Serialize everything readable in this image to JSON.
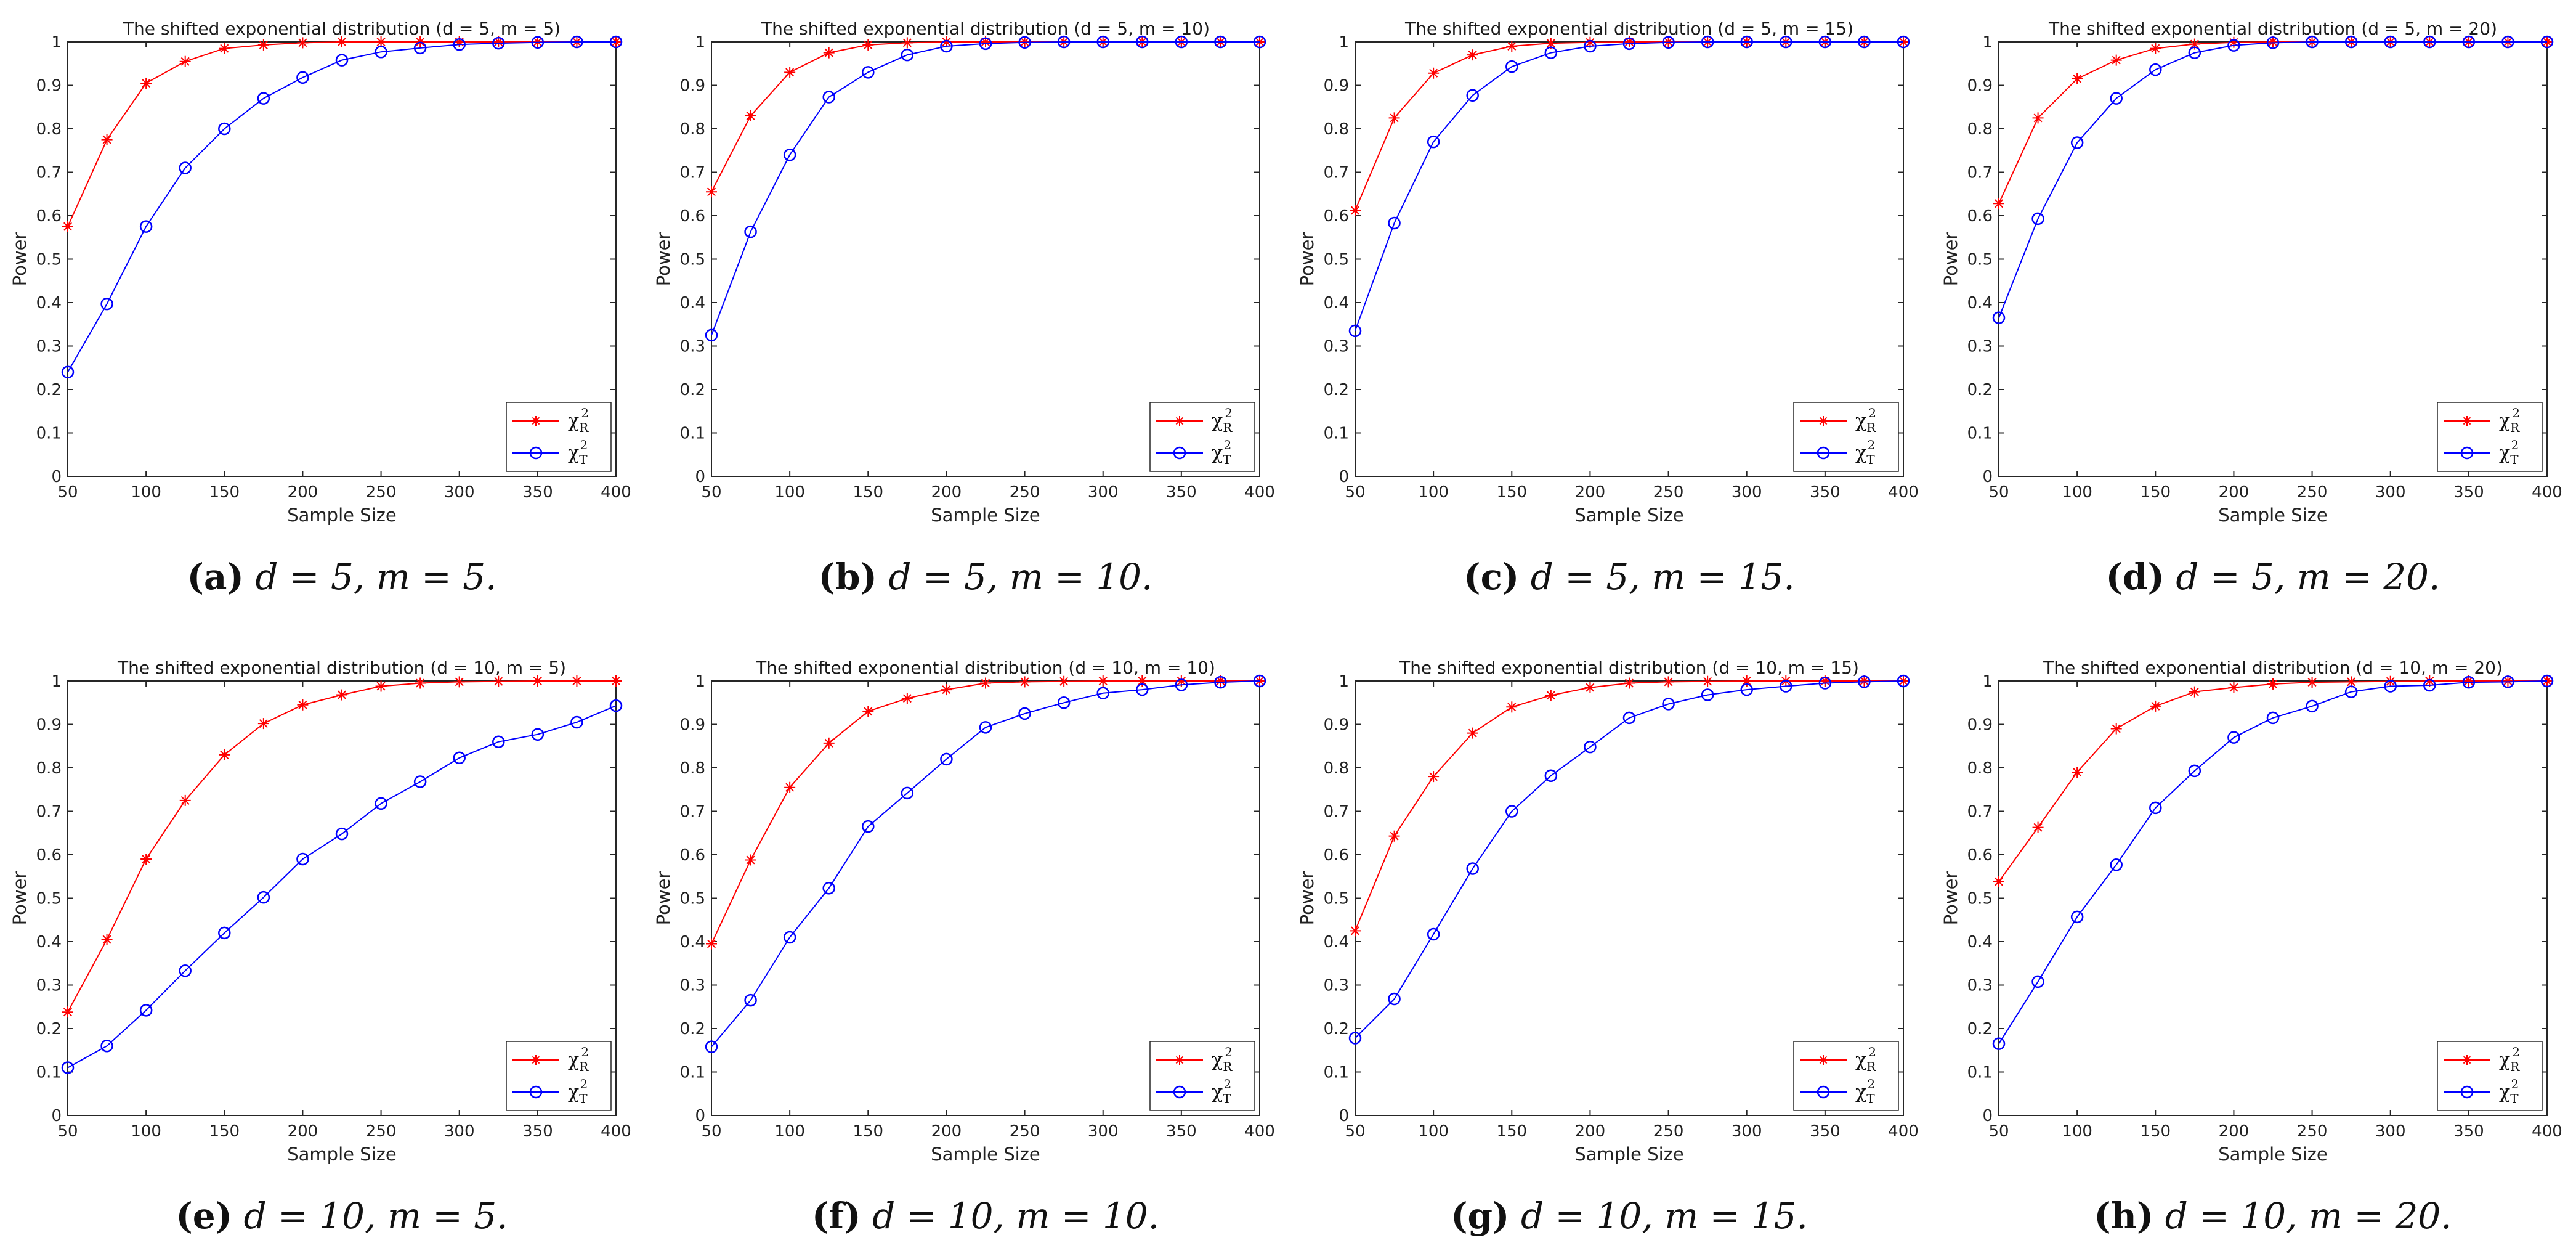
{
  "colors": {
    "chi2_R": "#ff0000",
    "chi2_T": "#0000ff",
    "axis": "#262626"
  },
  "icons": {
    "chi2_R_marker": "asterisk-marker",
    "chi2_T_marker": "circle-marker"
  },
  "chart_data": [
    {
      "type": "line",
      "title": "The shifted exponential distribution (d = 5, m = 5)",
      "caption_letter": "(a)",
      "caption_text": "d = 5, m = 5.",
      "xlabel": "Sample Size",
      "ylabel": "Power",
      "xlim": [
        50,
        400
      ],
      "ylim": [
        0,
        1
      ],
      "xticks": [
        "50",
        "100",
        "150",
        "200",
        "250",
        "300",
        "350",
        "400"
      ],
      "yticks": [
        "0",
        "0.1",
        "0.2",
        "0.3",
        "0.4",
        "0.5",
        "0.6",
        "0.7",
        "0.8",
        "0.9",
        "1"
      ],
      "x": [
        50,
        75,
        100,
        125,
        150,
        175,
        200,
        225,
        250,
        275,
        300,
        325,
        350,
        375,
        400
      ],
      "series": [
        {
          "name": "χR2",
          "label_base": "χ",
          "label_sub": "R",
          "label_sup": "2",
          "marker": "asterisk",
          "values": [
            0.575,
            0.775,
            0.905,
            0.955,
            0.985,
            0.993,
            0.998,
            1,
            1,
            1,
            1,
            1,
            1,
            1,
            1
          ]
        },
        {
          "name": "χT2",
          "label_base": "χ",
          "label_sub": "T",
          "label_sup": "2",
          "marker": "circle",
          "values": [
            0.24,
            0.397,
            0.575,
            0.71,
            0.8,
            0.87,
            0.918,
            0.958,
            0.977,
            0.986,
            0.994,
            0.997,
            0.999,
            1,
            1
          ]
        }
      ],
      "legend": "bottom-right"
    },
    {
      "type": "line",
      "title": "The shifted exponential distribution (d = 5, m = 10)",
      "caption_letter": "(b)",
      "caption_text": "d = 5, m = 10.",
      "xlabel": "Sample Size",
      "ylabel": "Power",
      "xlim": [
        50,
        400
      ],
      "ylim": [
        0,
        1
      ],
      "xticks": [
        "50",
        "100",
        "150",
        "200",
        "250",
        "300",
        "350",
        "400"
      ],
      "yticks": [
        "0",
        "0.1",
        "0.2",
        "0.3",
        "0.4",
        "0.5",
        "0.6",
        "0.7",
        "0.8",
        "0.9",
        "1"
      ],
      "x": [
        50,
        75,
        100,
        125,
        150,
        175,
        200,
        225,
        250,
        275,
        300,
        325,
        350,
        375,
        400
      ],
      "series": [
        {
          "name": "χR2",
          "label_base": "χ",
          "label_sub": "R",
          "label_sup": "2",
          "marker": "asterisk",
          "values": [
            0.655,
            0.83,
            0.93,
            0.975,
            0.993,
            0.998,
            1,
            1,
            1,
            1,
            1,
            1,
            1,
            1,
            1
          ]
        },
        {
          "name": "χT2",
          "label_base": "χ",
          "label_sub": "T",
          "label_sup": "2",
          "marker": "circle",
          "values": [
            0.325,
            0.563,
            0.74,
            0.873,
            0.93,
            0.97,
            0.99,
            0.996,
            0.999,
            1,
            1,
            1,
            1,
            1,
            1
          ]
        }
      ],
      "legend": "bottom-right"
    },
    {
      "type": "line",
      "title": "The shifted exponential distribution (d = 5, m = 15)",
      "caption_letter": "(c)",
      "caption_text": "d = 5, m = 15.",
      "xlabel": "Sample Size",
      "ylabel": "Power",
      "xlim": [
        50,
        400
      ],
      "ylim": [
        0,
        1
      ],
      "xticks": [
        "50",
        "100",
        "150",
        "200",
        "250",
        "300",
        "350",
        "400"
      ],
      "yticks": [
        "0",
        "0.1",
        "0.2",
        "0.3",
        "0.4",
        "0.5",
        "0.6",
        "0.7",
        "0.8",
        "0.9",
        "1"
      ],
      "x": [
        50,
        75,
        100,
        125,
        150,
        175,
        200,
        225,
        250,
        275,
        300,
        325,
        350,
        375,
        400
      ],
      "series": [
        {
          "name": "χR2",
          "label_base": "χ",
          "label_sub": "R",
          "label_sup": "2",
          "marker": "asterisk",
          "values": [
            0.612,
            0.825,
            0.928,
            0.97,
            0.99,
            0.997,
            0.999,
            1,
            1,
            1,
            1,
            1,
            1,
            1,
            1
          ]
        },
        {
          "name": "χT2",
          "label_base": "χ",
          "label_sub": "T",
          "label_sup": "2",
          "marker": "circle",
          "values": [
            0.335,
            0.583,
            0.77,
            0.877,
            0.943,
            0.975,
            0.99,
            0.996,
            0.999,
            1,
            1,
            1,
            1,
            1,
            1
          ]
        }
      ],
      "legend": "bottom-right"
    },
    {
      "type": "line",
      "title": "The shifted exponential distribution (d = 5, m = 20)",
      "caption_letter": "(d)",
      "caption_text": "d = 5, m = 20.",
      "xlabel": "Sample Size",
      "ylabel": "Power",
      "xlim": [
        50,
        400
      ],
      "ylim": [
        0,
        1
      ],
      "xticks": [
        "50",
        "100",
        "150",
        "200",
        "250",
        "300",
        "350",
        "400"
      ],
      "yticks": [
        "0",
        "0.1",
        "0.2",
        "0.3",
        "0.4",
        "0.5",
        "0.6",
        "0.7",
        "0.8",
        "0.9",
        "1"
      ],
      "x": [
        50,
        75,
        100,
        125,
        150,
        175,
        200,
        225,
        250,
        275,
        300,
        325,
        350,
        375,
        400
      ],
      "series": [
        {
          "name": "χR2",
          "label_base": "χ",
          "label_sub": "R",
          "label_sup": "2",
          "marker": "asterisk",
          "values": [
            0.628,
            0.825,
            0.915,
            0.958,
            0.985,
            0.995,
            0.999,
            1,
            1,
            1,
            1,
            1,
            1,
            1,
            1
          ]
        },
        {
          "name": "χT2",
          "label_base": "χ",
          "label_sub": "T",
          "label_sup": "2",
          "marker": "circle",
          "values": [
            0.365,
            0.593,
            0.768,
            0.87,
            0.936,
            0.975,
            0.992,
            0.998,
            1,
            1,
            1,
            1,
            1,
            1,
            1
          ]
        }
      ],
      "legend": "bottom-right"
    },
    {
      "type": "line",
      "title": "The shifted exponential distribution (d = 10, m = 5)",
      "caption_letter": "(e)",
      "caption_text": "d = 10, m = 5.",
      "xlabel": "Sample Size",
      "ylabel": "Power",
      "xlim": [
        50,
        400
      ],
      "ylim": [
        0,
        1
      ],
      "xticks": [
        "50",
        "100",
        "150",
        "200",
        "250",
        "300",
        "350",
        "400"
      ],
      "yticks": [
        "0",
        "0.1",
        "0.2",
        "0.3",
        "0.4",
        "0.5",
        "0.6",
        "0.7",
        "0.8",
        "0.9",
        "1"
      ],
      "x": [
        50,
        75,
        100,
        125,
        150,
        175,
        200,
        225,
        250,
        275,
        300,
        325,
        350,
        375,
        400
      ],
      "series": [
        {
          "name": "χR2",
          "label_base": "χ",
          "label_sub": "R",
          "label_sup": "2",
          "marker": "asterisk",
          "values": [
            0.238,
            0.405,
            0.59,
            0.725,
            0.83,
            0.902,
            0.945,
            0.968,
            0.988,
            0.995,
            0.998,
            0.999,
            1,
            1,
            1
          ]
        },
        {
          "name": "χT2",
          "label_base": "χ",
          "label_sub": "T",
          "label_sup": "2",
          "marker": "circle",
          "values": [
            0.11,
            0.16,
            0.242,
            0.333,
            0.42,
            0.502,
            0.59,
            0.648,
            0.718,
            0.768,
            0.823,
            0.86,
            0.877,
            0.905,
            0.943
          ]
        }
      ],
      "legend": "bottom-right"
    },
    {
      "type": "line",
      "title": "The shifted exponential distribution (d = 10, m = 10)",
      "caption_letter": "(f)",
      "caption_text": "d = 10, m = 10.",
      "xlabel": "Sample Size",
      "ylabel": "Power",
      "xlim": [
        50,
        400
      ],
      "ylim": [
        0,
        1
      ],
      "xticks": [
        "50",
        "100",
        "150",
        "200",
        "250",
        "300",
        "350",
        "400"
      ],
      "yticks": [
        "0",
        "0.1",
        "0.2",
        "0.3",
        "0.4",
        "0.5",
        "0.6",
        "0.7",
        "0.8",
        "0.9",
        "1"
      ],
      "x": [
        50,
        75,
        100,
        125,
        150,
        175,
        200,
        225,
        250,
        275,
        300,
        325,
        350,
        375,
        400
      ],
      "series": [
        {
          "name": "χR2",
          "label_base": "χ",
          "label_sub": "R",
          "label_sup": "2",
          "marker": "asterisk",
          "values": [
            0.395,
            0.588,
            0.755,
            0.857,
            0.93,
            0.96,
            0.98,
            0.995,
            0.998,
            0.999,
            1,
            1,
            1,
            1,
            1
          ]
        },
        {
          "name": "χT2",
          "label_base": "χ",
          "label_sub": "T",
          "label_sup": "2",
          "marker": "circle",
          "values": [
            0.158,
            0.265,
            0.41,
            0.523,
            0.665,
            0.742,
            0.82,
            0.893,
            0.925,
            0.95,
            0.972,
            0.98,
            0.991,
            0.997,
            1
          ]
        }
      ],
      "legend": "bottom-right"
    },
    {
      "type": "line",
      "title": "The shifted exponential distribution (d = 10, m = 15)",
      "caption_letter": "(g)",
      "caption_text": "d = 10, m = 15.",
      "xlabel": "Sample Size",
      "ylabel": "Power",
      "xlim": [
        50,
        400
      ],
      "ylim": [
        0,
        1
      ],
      "xticks": [
        "50",
        "100",
        "150",
        "200",
        "250",
        "300",
        "350",
        "400"
      ],
      "yticks": [
        "0",
        "0.1",
        "0.2",
        "0.3",
        "0.4",
        "0.5",
        "0.6",
        "0.7",
        "0.8",
        "0.9",
        "1"
      ],
      "x": [
        50,
        75,
        100,
        125,
        150,
        175,
        200,
        225,
        250,
        275,
        300,
        325,
        350,
        375,
        400
      ],
      "series": [
        {
          "name": "χR2",
          "label_base": "χ",
          "label_sub": "R",
          "label_sup": "2",
          "marker": "asterisk",
          "values": [
            0.425,
            0.643,
            0.78,
            0.88,
            0.94,
            0.967,
            0.985,
            0.995,
            0.998,
            0.999,
            1,
            1,
            1,
            1,
            1
          ]
        },
        {
          "name": "χT2",
          "label_base": "χ",
          "label_sub": "T",
          "label_sup": "2",
          "marker": "circle",
          "values": [
            0.178,
            0.268,
            0.417,
            0.568,
            0.7,
            0.782,
            0.848,
            0.915,
            0.947,
            0.968,
            0.98,
            0.988,
            0.995,
            0.998,
            1
          ]
        }
      ],
      "legend": "bottom-right"
    },
    {
      "type": "line",
      "title": "The shifted exponential distribution (d = 10, m = 20)",
      "caption_letter": "(h)",
      "caption_text": "d = 10, m = 20.",
      "xlabel": "Sample Size",
      "ylabel": "Power",
      "xlim": [
        50,
        400
      ],
      "ylim": [
        0,
        1
      ],
      "xticks": [
        "50",
        "100",
        "150",
        "200",
        "250",
        "300",
        "350",
        "400"
      ],
      "yticks": [
        "0",
        "0.1",
        "0.2",
        "0.3",
        "0.4",
        "0.5",
        "0.6",
        "0.7",
        "0.8",
        "0.9",
        "1"
      ],
      "x": [
        50,
        75,
        100,
        125,
        150,
        175,
        200,
        225,
        250,
        275,
        300,
        325,
        350,
        375,
        400
      ],
      "series": [
        {
          "name": "χR2",
          "label_base": "χ",
          "label_sub": "R",
          "label_sup": "2",
          "marker": "asterisk",
          "values": [
            0.538,
            0.663,
            0.79,
            0.89,
            0.942,
            0.975,
            0.985,
            0.993,
            0.997,
            0.998,
            0.999,
            1,
            1,
            1,
            1
          ]
        },
        {
          "name": "χT2",
          "label_base": "χ",
          "label_sub": "T",
          "label_sup": "2",
          "marker": "circle",
          "values": [
            0.165,
            0.308,
            0.457,
            0.577,
            0.708,
            0.793,
            0.87,
            0.915,
            0.942,
            0.975,
            0.988,
            0.99,
            0.997,
            0.998,
            1
          ]
        }
      ],
      "legend": "bottom-right"
    }
  ]
}
